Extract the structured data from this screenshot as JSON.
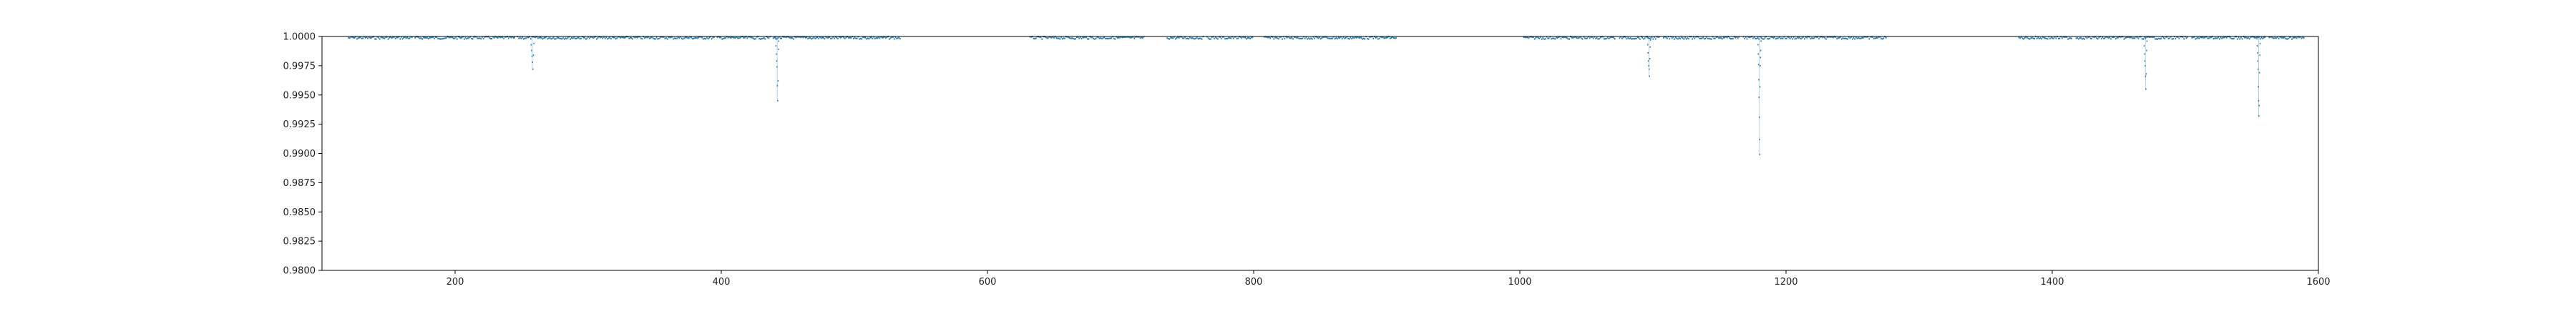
{
  "chart_data": {
    "type": "scatter",
    "title": "",
    "xlabel": "",
    "ylabel": "",
    "xlim": [
      100,
      1600
    ],
    "ylim": [
      0.98,
      1.0
    ],
    "x_ticks": [
      200,
      400,
      600,
      800,
      1000,
      1200,
      1400,
      1600
    ],
    "y_ticks": [
      0.98,
      0.9825,
      0.985,
      0.9875,
      0.99,
      0.9925,
      0.995,
      0.9975,
      1.0
    ],
    "x_tick_labels": [
      "200",
      "400",
      "600",
      "800",
      "1000",
      "1200",
      "1400",
      "1600"
    ],
    "y_tick_labels": [
      "0.9800",
      "0.9825",
      "0.9850",
      "0.9875",
      "0.9900",
      "0.9925",
      "0.9950",
      "0.9975",
      "1.0000"
    ],
    "grid": false,
    "marker_color": "#1f77b4",
    "baseline_segments": [
      {
        "start": 120,
        "end": 168
      },
      {
        "start": 170,
        "end": 245
      },
      {
        "start": 247,
        "end": 395
      },
      {
        "start": 397,
        "end": 437
      },
      {
        "start": 439,
        "end": 535
      },
      {
        "start": 632,
        "end": 718
      },
      {
        "start": 735,
        "end": 762
      },
      {
        "start": 765,
        "end": 800
      },
      {
        "start": 808,
        "end": 907
      },
      {
        "start": 1003,
        "end": 1072
      },
      {
        "start": 1075,
        "end": 1105
      },
      {
        "start": 1108,
        "end": 1165
      },
      {
        "start": 1168,
        "end": 1276
      },
      {
        "start": 1375,
        "end": 1415
      },
      {
        "start": 1418,
        "end": 1502
      },
      {
        "start": 1505,
        "end": 1560
      },
      {
        "start": 1563,
        "end": 1590
      }
    ],
    "baseline_flux": 1.0,
    "dips": [
      {
        "x": 258,
        "points": [
          0.9998,
          0.9993,
          0.9988,
          0.9983,
          0.9978,
          0.9972,
          0.9984,
          0.9994
        ]
      },
      {
        "x": 442,
        "points": [
          0.9998,
          0.9992,
          0.9985,
          0.9979,
          0.9974,
          0.9958,
          0.9945,
          0.9962,
          0.9989,
          0.9996
        ]
      },
      {
        "x": 1097,
        "points": [
          0.9999,
          0.9993,
          0.9986,
          0.9979,
          0.9975,
          0.9972,
          0.9966,
          0.9981,
          0.9991,
          0.9997
        ]
      },
      {
        "x": 1180,
        "points": [
          0.9999,
          0.9993,
          0.9985,
          0.9976,
          0.9963,
          0.9948,
          0.9931,
          0.9912,
          0.9899,
          0.9957,
          0.9975,
          0.9982,
          0.9988,
          0.9996
        ]
      },
      {
        "x": 1470,
        "points": [
          0.9998,
          0.9992,
          0.9985,
          0.9979,
          0.9975,
          0.9966,
          0.9955,
          0.9968,
          0.9988,
          0.9996
        ]
      },
      {
        "x": 1555,
        "points": [
          0.9998,
          0.9992,
          0.9986,
          0.9979,
          0.9972,
          0.9957,
          0.9945,
          0.9932,
          0.9941,
          0.9969,
          0.9984,
          0.9994
        ]
      }
    ]
  }
}
